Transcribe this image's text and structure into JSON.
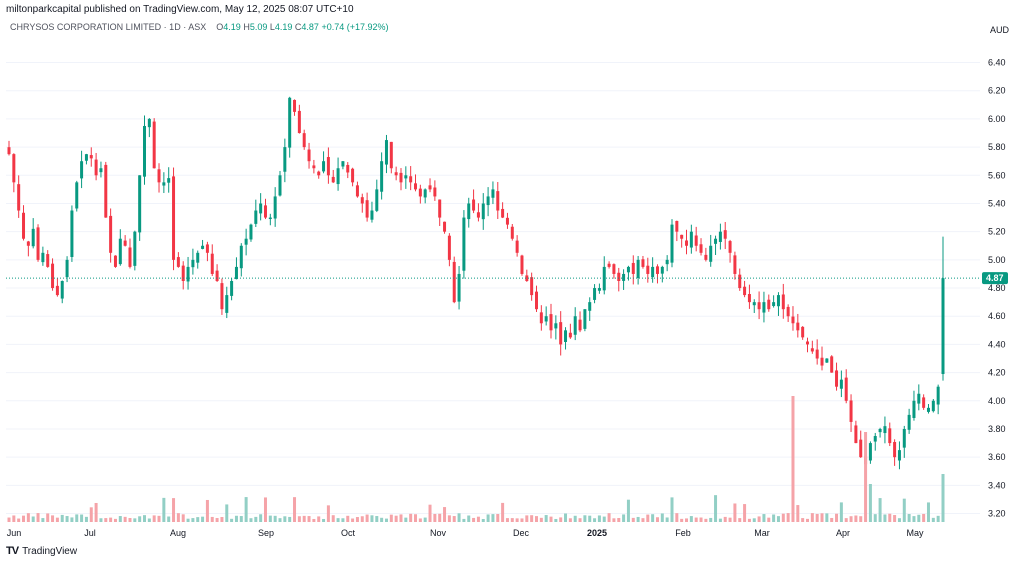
{
  "header": {
    "publisher_text": "miltonparkcapital published on TradingView.com, May 12, 2025 08:07 UTC+10"
  },
  "legend": {
    "symbol": "CHRYSOS CORPORATION LIMITED · 1D · ASX",
    "open_label": "O",
    "open_value": "4.19",
    "high_label": "H",
    "high_value": "5.09",
    "low_label": "L",
    "low_value": "4.19",
    "close_label": "C",
    "close_value": "4.87",
    "change": "+0.74 (+17.92%)"
  },
  "footer": {
    "brand": "TradingView",
    "brand_icon": "tradingview-logo-icon"
  },
  "colors": {
    "up": "#089981",
    "down": "#f23645",
    "up_vol": "#92cfc5",
    "down_vol": "#f5a3a8",
    "grid": "#f0f3fa",
    "text": "#131722"
  },
  "chart_data": {
    "type": "candlestick",
    "currency": "AUD",
    "last_price": "4.87",
    "yticks": [
      "6.40",
      "6.20",
      "6.00",
      "5.80",
      "5.60",
      "5.40",
      "5.20",
      "5.00",
      "4.80",
      "4.60",
      "4.40",
      "4.20",
      "4.00",
      "3.80",
      "3.60",
      "3.40",
      "3.20"
    ],
    "ylim": [
      3.14,
      6.56
    ],
    "xticks": [
      "Jun",
      "Jul",
      "Aug",
      "Sep",
      "Oct",
      "Nov",
      "Dec",
      "2025",
      "Feb",
      "Mar",
      "Apr",
      "May"
    ],
    "start_date": "2024-05-28",
    "close_series": [
      5.75,
      5.55,
      5.35,
      5.15,
      5.1,
      5.22,
      5.0,
      5.05,
      4.95,
      4.8,
      4.75,
      4.85,
      5.0,
      5.35,
      5.55,
      5.7,
      5.75,
      5.72,
      5.6,
      5.65,
      5.3,
      5.05,
      4.95,
      5.15,
      5.1,
      4.95,
      5.2,
      5.6,
      5.95,
      6.0,
      5.65,
      5.55,
      5.55,
      5.58,
      5.0,
      4.95,
      4.85,
      4.95,
      5.0,
      5.05,
      5.1,
      5.05,
      4.9,
      4.85,
      4.65,
      4.75,
      4.85,
      4.95,
      5.1,
      5.15,
      5.25,
      5.35,
      5.4,
      5.3,
      5.3,
      5.45,
      5.6,
      5.8,
      6.15,
      6.05,
      5.9,
      5.8,
      5.7,
      5.65,
      5.6,
      5.7,
      5.6,
      5.55,
      5.65,
      5.7,
      5.62,
      5.55,
      5.45,
      5.4,
      5.3,
      5.35,
      5.5,
      5.7,
      5.85,
      5.65,
      5.6,
      5.55,
      5.6,
      5.55,
      5.5,
      5.45,
      5.5,
      5.5,
      5.45,
      5.3,
      5.2,
      5.0,
      4.7,
      4.9,
      5.3,
      5.4,
      5.35,
      5.3,
      5.4,
      5.45,
      5.5,
      5.35,
      5.3,
      5.25,
      5.15,
      5.05,
      4.9,
      4.85,
      4.75,
      4.65,
      4.55,
      4.6,
      4.5,
      4.55,
      4.4,
      4.5,
      4.45,
      4.6,
      4.5,
      4.65,
      4.7,
      4.8,
      4.8,
      4.95,
      4.95,
      4.9,
      4.85,
      4.9,
      4.95,
      4.9,
      5.0,
      4.95,
      4.9,
      4.95,
      4.9,
      4.95,
      5.0,
      5.25,
      5.2,
      5.15,
      5.1,
      5.2,
      5.1,
      5.05,
      5.0,
      5.1,
      5.15,
      5.2,
      5.15,
      5.05,
      4.9,
      4.8,
      4.75,
      4.7,
      4.7,
      4.65,
      4.7,
      4.65,
      4.7,
      4.75,
      4.65,
      4.6,
      4.55,
      4.5,
      4.45,
      4.4,
      4.35,
      4.3,
      4.25,
      4.3,
      4.2,
      4.1,
      4.15,
      4.0,
      3.85,
      3.7,
      3.6,
      3.55,
      3.7,
      3.75,
      3.8,
      3.82,
      3.7,
      3.6,
      3.65,
      3.8,
      3.9,
      4.0,
      4.05,
      3.95,
      3.95,
      4.0,
      4.1,
      4.87
    ],
    "volume_note": "volume shown as histogram, no numeric scale printed"
  }
}
